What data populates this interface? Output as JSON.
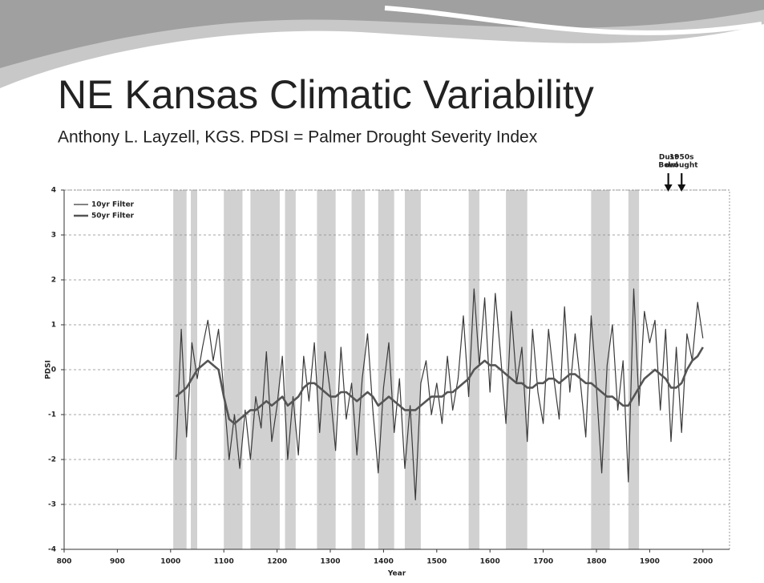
{
  "chart_data": {
    "type": "line",
    "title": "NE Kansas Climatic Variability",
    "subtitle": "Anthony L. Layzell, KGS.  PDSI = Palmer Drought Severity Index",
    "x_label": "Year",
    "y_label": "PDSI",
    "xlim": [
      800,
      2050
    ],
    "xticks": [
      800,
      900,
      1000,
      1100,
      1200,
      1300,
      1400,
      1500,
      1600,
      1700,
      1800,
      1900,
      2000
    ],
    "ylim": [
      -4,
      4
    ],
    "yticks": [
      -4,
      -3,
      -2,
      -1,
      0,
      1,
      2,
      3,
      4
    ],
    "grid": true,
    "legend": "top-left",
    "x": [
      1010,
      1020,
      1030,
      1040,
      1050,
      1060,
      1070,
      1080,
      1090,
      1100,
      1110,
      1120,
      1130,
      1140,
      1150,
      1160,
      1170,
      1180,
      1190,
      1200,
      1210,
      1220,
      1230,
      1240,
      1250,
      1260,
      1270,
      1280,
      1290,
      1300,
      1310,
      1320,
      1330,
      1340,
      1350,
      1360,
      1370,
      1380,
      1390,
      1400,
      1410,
      1420,
      1430,
      1440,
      1450,
      1460,
      1470,
      1480,
      1490,
      1500,
      1510,
      1520,
      1530,
      1540,
      1550,
      1560,
      1570,
      1580,
      1590,
      1600,
      1610,
      1620,
      1630,
      1640,
      1650,
      1660,
      1670,
      1680,
      1690,
      1700,
      1710,
      1720,
      1730,
      1740,
      1750,
      1760,
      1770,
      1780,
      1790,
      1800,
      1810,
      1820,
      1830,
      1840,
      1850,
      1860,
      1870,
      1880,
      1890,
      1900,
      1910,
      1920,
      1930,
      1940,
      1950,
      1960,
      1970,
      1980,
      1990,
      2000
    ],
    "series": [
      {
        "name": "10yr Filter",
        "color": "#3a3a3a",
        "width": 1.2,
        "values": [
          -2.0,
          0.9,
          -1.5,
          0.6,
          -0.2,
          0.5,
          1.1,
          0.2,
          0.9,
          -0.5,
          -2.0,
          -1.0,
          -2.2,
          -0.9,
          -2.0,
          -0.6,
          -1.3,
          0.4,
          -1.6,
          -0.8,
          0.3,
          -2.0,
          -0.6,
          -1.9,
          0.3,
          -0.7,
          0.6,
          -1.4,
          0.4,
          -0.5,
          -1.8,
          0.5,
          -1.1,
          -0.3,
          -1.9,
          -0.2,
          0.8,
          -0.9,
          -2.3,
          -0.4,
          0.6,
          -1.4,
          -0.2,
          -2.2,
          -0.8,
          -2.9,
          -0.3,
          0.2,
          -1.0,
          -0.3,
          -1.2,
          0.3,
          -0.9,
          -0.2,
          1.2,
          -0.6,
          1.8,
          0.1,
          1.6,
          -0.5,
          1.7,
          0.3,
          -1.2,
          1.3,
          -0.3,
          0.5,
          -1.6,
          0.9,
          -0.5,
          -1.2,
          0.9,
          -0.2,
          -1.1,
          1.4,
          -0.5,
          0.8,
          -0.3,
          -1.5,
          1.2,
          -0.4,
          -2.3,
          0.1,
          1.0,
          -0.9,
          0.2,
          -2.5,
          1.8,
          -0.8,
          1.3,
          0.6,
          1.1,
          -0.9,
          0.9,
          -1.6,
          0.5,
          -1.4,
          0.8,
          0.2,
          1.5,
          0.7
        ]
      },
      {
        "name": "50yr Filter",
        "color": "#555555",
        "width": 2.6,
        "values": [
          -0.6,
          -0.5,
          -0.4,
          -0.2,
          0.0,
          0.1,
          0.2,
          0.1,
          0.0,
          -0.6,
          -1.1,
          -1.2,
          -1.1,
          -1.0,
          -0.9,
          -0.9,
          -0.8,
          -0.7,
          -0.8,
          -0.7,
          -0.6,
          -0.8,
          -0.7,
          -0.6,
          -0.4,
          -0.3,
          -0.3,
          -0.4,
          -0.5,
          -0.6,
          -0.6,
          -0.5,
          -0.5,
          -0.6,
          -0.7,
          -0.6,
          -0.5,
          -0.6,
          -0.8,
          -0.7,
          -0.6,
          -0.7,
          -0.8,
          -0.9,
          -0.9,
          -0.9,
          -0.8,
          -0.7,
          -0.6,
          -0.6,
          -0.6,
          -0.5,
          -0.5,
          -0.4,
          -0.3,
          -0.2,
          0.0,
          0.1,
          0.2,
          0.1,
          0.1,
          0.0,
          -0.1,
          -0.2,
          -0.3,
          -0.3,
          -0.4,
          -0.4,
          -0.3,
          -0.3,
          -0.2,
          -0.2,
          -0.3,
          -0.2,
          -0.1,
          -0.1,
          -0.2,
          -0.3,
          -0.3,
          -0.4,
          -0.5,
          -0.6,
          -0.6,
          -0.7,
          -0.8,
          -0.8,
          -0.6,
          -0.4,
          -0.2,
          -0.1,
          0.0,
          -0.1,
          -0.2,
          -0.4,
          -0.4,
          -0.3,
          0.0,
          0.2,
          0.3,
          0.5
        ]
      }
    ],
    "shaded_periods": [
      [
        1005,
        1030
      ],
      [
        1038,
        1050
      ],
      [
        1100,
        1135
      ],
      [
        1150,
        1205
      ],
      [
        1215,
        1235
      ],
      [
        1275,
        1310
      ],
      [
        1340,
        1365
      ],
      [
        1390,
        1420
      ],
      [
        1440,
        1470
      ],
      [
        1560,
        1580
      ],
      [
        1630,
        1670
      ],
      [
        1790,
        1825
      ],
      [
        1860,
        1880
      ]
    ],
    "annotations": [
      {
        "lines": [
          "Dust",
          "Bowl"
        ],
        "x": 1935
      },
      {
        "lines": [
          "1950s",
          "drought"
        ],
        "x": 1960
      }
    ]
  }
}
